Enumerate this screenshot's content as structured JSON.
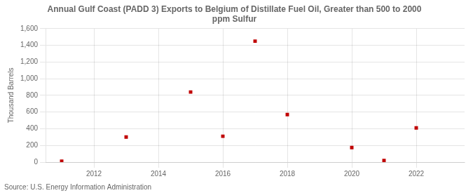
{
  "chart_data": {
    "type": "scatter",
    "title": "Annual Gulf Coast (PADD 3) Exports to Belgium of Distillate Fuel Oil, Greater than 500 to 2000\nppm Sulfur",
    "ylabel": "Thousand Barrels",
    "source": "Source: U.S. Energy Information Administration",
    "x": [
      2011,
      2013,
      2015,
      2016,
      2017,
      2018,
      2020,
      2021,
      2022
    ],
    "values": [
      10,
      300,
      840,
      310,
      1450,
      570,
      175,
      20,
      410
    ],
    "color": "#c00000",
    "marker": "square",
    "xlim": [
      2010.5,
      2023.5
    ],
    "xticks": [
      2012,
      2014,
      2016,
      2018,
      2020,
      2022
    ],
    "ylim": [
      0,
      1600
    ],
    "yticks": [
      0,
      200,
      400,
      600,
      800,
      {
        "value": 1000,
        "label": "1,000"
      },
      {
        "value": 1200,
        "label": "1,200"
      },
      {
        "value": 1400,
        "label": "1,400"
      },
      {
        "value": 1600,
        "label": "1,600"
      }
    ],
    "grid": true
  }
}
